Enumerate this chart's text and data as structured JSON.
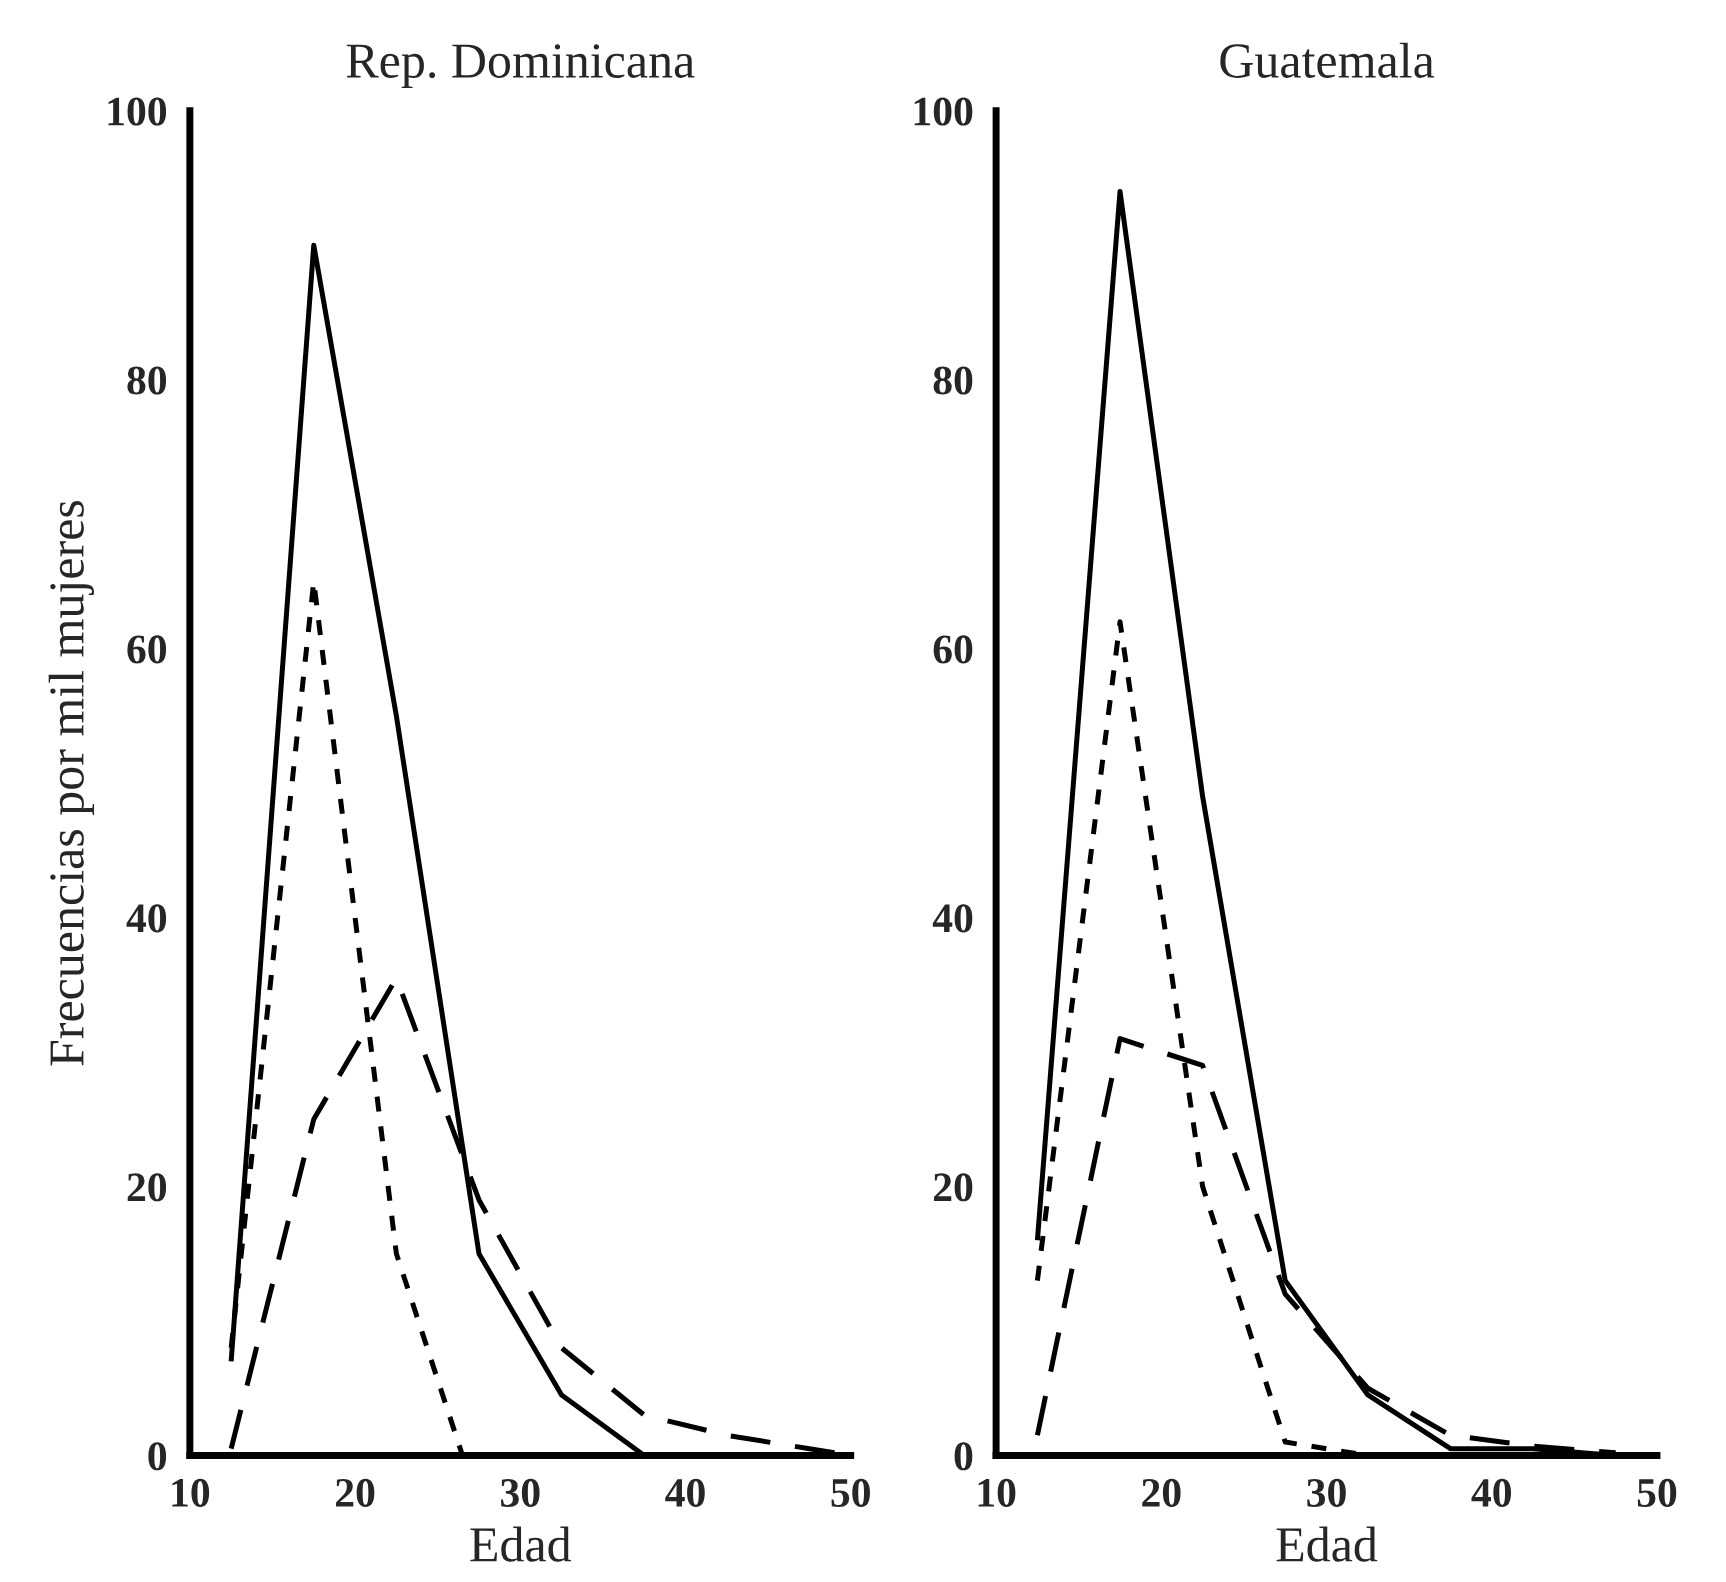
{
  "chart_data": [
    {
      "type": "line",
      "title": "Rep. Dominicana",
      "xlabel": "Edad",
      "ylabel": "Frecuencias por mil mujeres",
      "xlim": [
        10,
        50
      ],
      "ylim": [
        0,
        100
      ],
      "xticks": [
        10,
        20,
        30,
        40,
        50
      ],
      "yticks": [
        0,
        20,
        40,
        60,
        80,
        100
      ],
      "grid": false,
      "series": [
        {
          "color": "#000000",
          "line_style": "solid",
          "x": [
            12.5,
            17.5,
            22.5,
            27.5,
            32.5,
            37.5
          ],
          "values": [
            7,
            90,
            55,
            15,
            4.5,
            0
          ]
        },
        {
          "color": "#000000",
          "line_style": "dotted",
          "x": [
            12.5,
            17.5,
            22.5,
            26.5
          ],
          "values": [
            8,
            65,
            15,
            0
          ]
        },
        {
          "color": "#000000",
          "line_style": "dashed",
          "x": [
            12.5,
            17.5,
            22.5,
            27.5,
            32.5,
            37.5,
            42.5,
            47.5,
            50
          ],
          "values": [
            0.5,
            25,
            35.5,
            19,
            8,
            3,
            1.5,
            0.5,
            0
          ]
        }
      ]
    },
    {
      "type": "line",
      "title": "Guatemala",
      "xlabel": "Edad",
      "xlim": [
        10,
        50
      ],
      "ylim": [
        0,
        100
      ],
      "xticks": [
        10,
        20,
        30,
        40,
        50
      ],
      "yticks": [
        0,
        20,
        40,
        60,
        80,
        100
      ],
      "grid": false,
      "series": [
        {
          "color": "#000000",
          "line_style": "solid",
          "x": [
            12.5,
            17.5,
            22.5,
            27.5,
            32.5,
            37.5,
            42.5,
            47.5
          ],
          "values": [
            16,
            94,
            49,
            13,
            4.5,
            0.5,
            0.5,
            0
          ]
        },
        {
          "color": "#000000",
          "line_style": "dotted",
          "x": [
            12.5,
            17.5,
            22.5,
            27.5,
            32.5
          ],
          "values": [
            13,
            62,
            20,
            1,
            0
          ]
        },
        {
          "color": "#000000",
          "line_style": "dashed",
          "x": [
            12.5,
            17.5,
            22.5,
            27.5,
            32.5,
            37.5,
            42.5,
            47.5
          ],
          "values": [
            1.5,
            31,
            29,
            12,
            5,
            1.5,
            0.7,
            0.2
          ]
        }
      ]
    }
  ]
}
